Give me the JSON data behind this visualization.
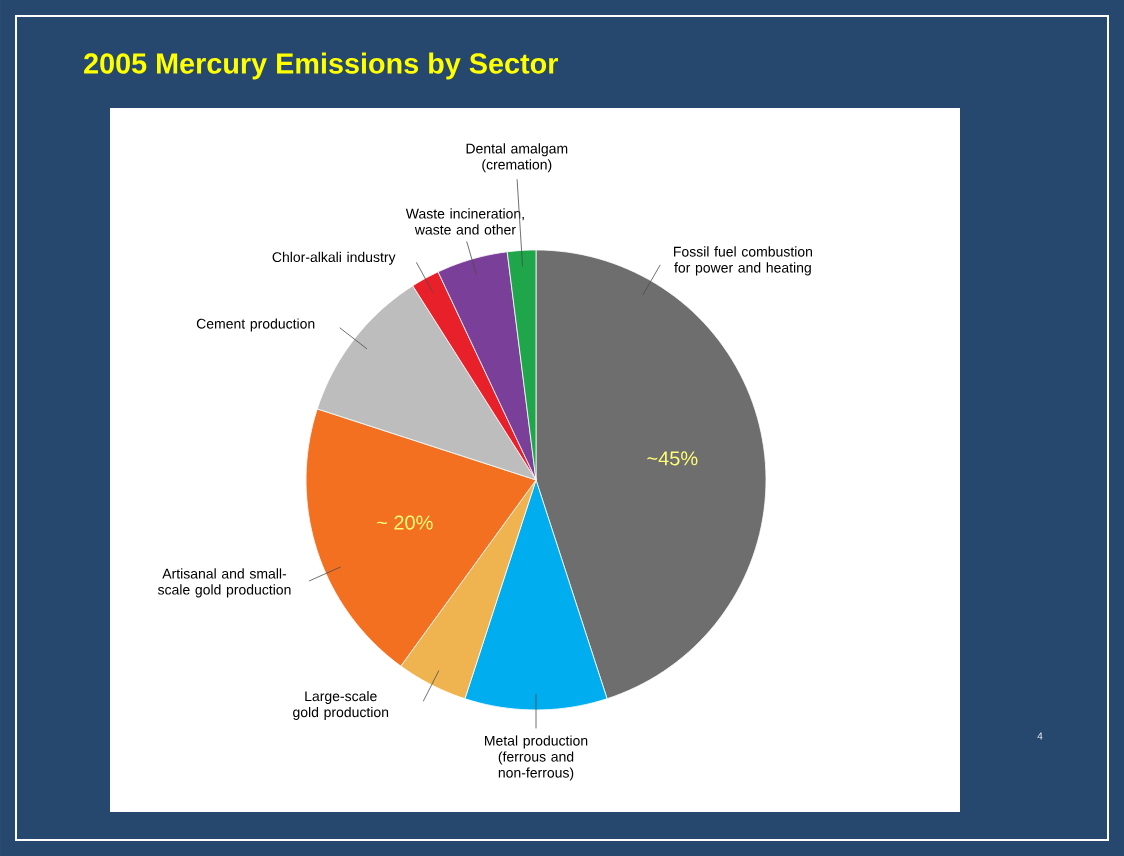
{
  "chart_data": {
    "type": "pie",
    "title": "2005 Mercury Emissions by Sector",
    "categories": [
      "Fossil fuel combustion for power and heating",
      "Metal production (ferrous and non-ferrous)",
      "Large-scale gold production",
      "Artisanal and small-scale gold production",
      "Cement production",
      "Chlor-alkali industry",
      "Waste incineration, waste and other",
      "Dental amalgam (cremation)"
    ],
    "values": [
      45,
      10,
      5,
      20,
      11,
      2,
      5,
      2
    ],
    "colors": [
      "#6e6e6e",
      "#00adef",
      "#efb34f",
      "#f37021",
      "#bdbdbd",
      "#e8202a",
      "#7a3f98",
      "#1fa54a"
    ],
    "value_labels": [
      "~45%",
      null,
      null,
      "~ 20%",
      null,
      null,
      null,
      null
    ],
    "annotations": [
      "4"
    ]
  }
}
